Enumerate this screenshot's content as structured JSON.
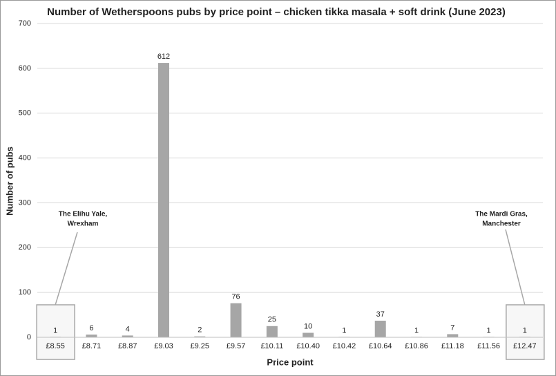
{
  "chart_data": {
    "type": "bar",
    "title": "Number of Wetherspoons pubs by price point – chicken tikka masala + soft drink (June 2023)",
    "x_label": "Price point",
    "y_label": "Number of pubs",
    "categories": [
      "£8.55",
      "£8.71",
      "£8.87",
      "£9.03",
      "£9.25",
      "£9.57",
      "£10.11",
      "£10.40",
      "£10.42",
      "£10.64",
      "£10.86",
      "£11.18",
      "£11.56",
      "£12.47"
    ],
    "values": [
      1,
      6,
      4,
      612,
      2,
      76,
      25,
      10,
      1,
      37,
      1,
      7,
      1,
      1
    ],
    "color": "#a6a6a6",
    "ylim": [
      0,
      700
    ],
    "yticks": [
      0,
      100,
      200,
      300,
      400,
      500,
      600,
      700
    ],
    "grid": true,
    "annotations": [
      [
        "The Elihu Yale,",
        "Wrexham"
      ],
      [
        "The Mardi Gras,",
        "Manchester"
      ]
    ]
  }
}
